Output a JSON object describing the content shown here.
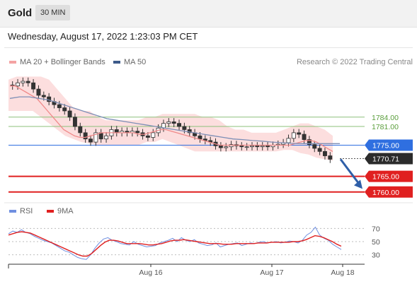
{
  "header": {
    "symbol": "Gold",
    "timeframe": "30 MIN"
  },
  "datetime": "Wednesday, August 17, 2022 1:23:03 PM CET",
  "legend_main": [
    {
      "label": "MA 20 + Bollinger Bands",
      "color": "#f4a3a3"
    },
    {
      "label": "MA 50",
      "color": "#3d5a8a"
    }
  ],
  "legend_rsi": [
    {
      "label": "RSI",
      "color": "#6f8fe0"
    },
    {
      "label": "9MA",
      "color": "#e02020"
    }
  ],
  "credit": "Research © 2022 Trading Central",
  "chart_data": [
    {
      "type": "line",
      "title": "Gold",
      "timeframe": "30 MIN",
      "y_range": [
        1757,
        1798
      ],
      "x_tick_labels": [
        "Aug 16",
        "Aug 17",
        "Aug 18"
      ],
      "levels": [
        {
          "value": 1784.0,
          "label": "1784.00",
          "kind": "resistance",
          "color": "#8cc07a"
        },
        {
          "value": 1781.0,
          "label": "1781.00",
          "kind": "resistance",
          "color": "#8cc07a"
        },
        {
          "value": 1775.0,
          "label": "1775.00",
          "kind": "pivot",
          "color": "#2f6fe0"
        },
        {
          "value": 1765.0,
          "label": "1765.00",
          "kind": "support",
          "color": "#e02020"
        },
        {
          "value": 1760.0,
          "label": "1760.00",
          "kind": "support",
          "color": "#e02020"
        }
      ],
      "last_price": {
        "value": 1770.71,
        "label": "1770.71"
      },
      "forecast_arrow": {
        "from": 1770.5,
        "to": 1761
      },
      "close": [
        1794,
        1795,
        1795.5,
        1795,
        1793,
        1791,
        1790.5,
        1789,
        1788,
        1787,
        1786,
        1784,
        1781,
        1779,
        1777,
        1776,
        1779,
        1777,
        1778,
        1780,
        1779,
        1779.5,
        1779,
        1779.5,
        1779,
        1778,
        1777.5,
        1779,
        1780.5,
        1782,
        1782.5,
        1782,
        1781,
        1780,
        1779,
        1778,
        1777,
        1776.5,
        1776,
        1774.8,
        1774.2,
        1774.5,
        1775.2,
        1774.8,
        1774.5,
        1774.5,
        1774.8,
        1774.5,
        1774.8,
        1774.5,
        1775,
        1775.3,
        1775.8,
        1777.2,
        1779,
        1778.5,
        1776.8,
        1775.2,
        1774,
        1773,
        1771.6,
        1770.5
      ],
      "ma20": [
        1794,
        1794,
        1793,
        1792,
        1791,
        1790,
        1788,
        1786,
        1784,
        1782,
        1780,
        1779,
        1778,
        1777.5,
        1777.5,
        1778,
        1778.5,
        1779,
        1779,
        1779,
        1779,
        1779,
        1779,
        1779,
        1778.5,
        1778.5,
        1779,
        1779.5,
        1780,
        1780,
        1779.5,
        1779,
        1778.5,
        1778,
        1777.5,
        1777,
        1776.5,
        1776,
        1775.5,
        1775,
        1775,
        1775,
        1775,
        1775,
        1775,
        1775,
        1775,
        1775,
        1775,
        1775,
        1775,
        1775,
        1775,
        1775.5,
        1776,
        1776.5,
        1776.5,
        1776,
        1775,
        1774,
        1773
      ],
      "ma50": [
        1790,
        1790.5,
        1790.5,
        1790,
        1789.5,
        1788.5,
        1787.5,
        1786.5,
        1785.5,
        1784.5,
        1783.5,
        1783,
        1782.5,
        1782,
        1781.5,
        1781,
        1780.5,
        1780,
        1779.5,
        1779,
        1778.5,
        1778,
        1777.5,
        1777,
        1776.8,
        1776.5,
        1776.3,
        1776,
        1775.8,
        1775.6,
        1775.5,
        1775.5,
        1775.5,
        1775.5,
        1775.5
      ],
      "bb_upper": [
        1796,
        1797,
        1797,
        1797,
        1797,
        1796,
        1793,
        1790,
        1787,
        1786,
        1786,
        1784,
        1783,
        1783,
        1783,
        1783,
        1783,
        1784,
        1784,
        1785,
        1785,
        1785,
        1785,
        1785,
        1784,
        1784,
        1783,
        1781,
        1780,
        1780,
        1779,
        1779,
        1779,
        1779,
        1780,
        1781,
        1782,
        1782,
        1781,
        1780,
        1778
      ],
      "bb_lower": [
        1786,
        1786,
        1786,
        1786,
        1784,
        1782,
        1780,
        1778,
        1777,
        1776,
        1775.5,
        1775,
        1775,
        1775,
        1775,
        1775,
        1775,
        1776,
        1776,
        1777,
        1776,
        1775,
        1774,
        1773,
        1773,
        1773,
        1773,
        1773,
        1773,
        1773,
        1773,
        1773,
        1773,
        1773,
        1773.5,
        1773.5,
        1772.5,
        1772,
        1771,
        1770.5,
        1770
      ]
    },
    {
      "type": "line",
      "title": "RSI",
      "y_range": [
        20,
        80
      ],
      "y_ticks": [
        30,
        50,
        70
      ],
      "series": [
        {
          "name": "RSI",
          "color": "#6f8fe0",
          "values": [
            62,
            66,
            64,
            68,
            64,
            62,
            58,
            55,
            52,
            50,
            48,
            44,
            40,
            36,
            34,
            30,
            26,
            24,
            23,
            30,
            40,
            48,
            54,
            56,
            52,
            50,
            47,
            46,
            45,
            50,
            46,
            44,
            42,
            43,
            44,
            48,
            50,
            52,
            55,
            50,
            56,
            52,
            50,
            53,
            48,
            46,
            44,
            45,
            48,
            42,
            44,
            46,
            47,
            48,
            44,
            46,
            48,
            47,
            49,
            50,
            48,
            49,
            50,
            48,
            49,
            51,
            50,
            48,
            52,
            60,
            64,
            72,
            60,
            55,
            52,
            46,
            42,
            38
          ]
        },
        {
          "name": "9MA",
          "color": "#e02020",
          "values": [
            60,
            62,
            64,
            65,
            64,
            63,
            60,
            57,
            54,
            51,
            48,
            45,
            42,
            39,
            36,
            33,
            30,
            28,
            28,
            32,
            38,
            44,
            49,
            52,
            52,
            51,
            49,
            47,
            47,
            47,
            47,
            46,
            45,
            45,
            46,
            47,
            49,
            51,
            52,
            52,
            53,
            52,
            51,
            50,
            49,
            48,
            47,
            47,
            47,
            46,
            46,
            46,
            47,
            47,
            47,
            47,
            47,
            48,
            48,
            48,
            49,
            49,
            49,
            49,
            49,
            50,
            50,
            51,
            53,
            56,
            59,
            58,
            56,
            53,
            50,
            46,
            43
          ]
        }
      ],
      "x_tick_labels": [
        "Aug 16",
        "Aug 17",
        "Aug 18"
      ]
    }
  ]
}
